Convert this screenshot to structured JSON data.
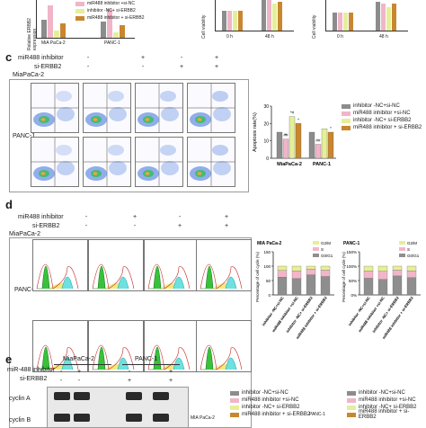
{
  "panels": {
    "c": "c",
    "d": "d",
    "e": "e"
  },
  "top": {
    "legend_a": [
      "miR488 inhibitor +si-NC",
      "inhibitor -NC+ si-ERBB2",
      "miR488 inhibitor + si-ERBB2"
    ],
    "ylabel_a": "Relative ERBB2 expression",
    "cats_a": [
      "MiA PaCa-2",
      "PANC-1"
    ],
    "cell_viab": "Cell viability",
    "t1": "0 h",
    "t2": "48 h",
    "t3": "0 h",
    "t4": "48 h"
  },
  "sectionC": {
    "mir488": "miR488 inhibitor",
    "si": "si-ERBB2",
    "line1": "MiaPaCa-2",
    "line2": "PANC-1",
    "signs_mir": [
      "-",
      "+",
      "-",
      "+"
    ],
    "signs_si": [
      "-",
      "-",
      "+",
      "+"
    ],
    "legend": [
      "inhibitor -NC+si-NC",
      "miR488 inhibitor +si-NC",
      "inhibitor -NC+ si-ERBB2",
      "miR488 inhibitor + si-ERBB2"
    ],
    "colors": [
      "#8c8c8c",
      "#f0b5c8",
      "#e5ef9a",
      "#c9862f"
    ],
    "ylabel": "Apoptosis rate(%)",
    "cats": [
      "MiaPaCa-2",
      "PANC-1"
    ],
    "yticks": [
      "0",
      "10",
      "20",
      "30"
    ],
    "annot": [
      "*",
      "##",
      "*#",
      "*",
      "##",
      "*"
    ]
  },
  "sectionD": {
    "mir488": "miR488 inhibitor",
    "si": "si-ERBB2",
    "line1": "MiaPaCa-2",
    "line2": "PANC-1",
    "signs_mir": [
      "-",
      "+",
      "-",
      "+"
    ],
    "signs_si": [
      "-",
      "-",
      "+",
      "+"
    ],
    "chart1_title": "MIA PaCa-2",
    "chart2_title": "PANC-1",
    "ylabel": "Percentage of cell cycle (%)",
    "yticks": [
      "0",
      "50",
      "100",
      "150"
    ],
    "yticks_pct": [
      "0%",
      "50%",
      "100%",
      "150%"
    ],
    "legend": [
      "G2/M",
      "S",
      "G0/G1"
    ],
    "colors": [
      "#e6ef96",
      "#f2b6c9",
      "#8e8e8e"
    ],
    "xcats": [
      "inhibitor -NC+si-NC",
      "miR488 inhibitor +si-NC",
      "inhibitor -NC+ si-ERBB2",
      "miR488 inhibitor + si-ERBB2"
    ]
  },
  "sectionE": {
    "line1": "MiaPaCa-2",
    "line2": "PANC-1",
    "mir488": "miR-488 inhibitor",
    "si": "si-ERBB2",
    "signs_mir": [
      "-",
      "+",
      "-",
      "+"
    ],
    "signs_si": [
      "-",
      "-",
      "+",
      "+"
    ],
    "row1": "cyclin A",
    "row2": "cyclin B",
    "legend": [
      "inhibitor -NC+si-NC",
      "miR488 inhibitor +si-NC",
      "inhibitor -NC+ si-ERBB2",
      "miR488 inhibitor + si-ERBB2"
    ],
    "chart1_title": "MIA PaCa-2",
    "chart2_title": "PANC-1"
  },
  "chart_data": [
    {
      "type": "bar",
      "title": "",
      "ylabel": "Apoptosis rate(%)",
      "categories": [
        "MiaPaCa-2",
        "PANC-1"
      ],
      "ylim": [
        0,
        30
      ],
      "series": [
        {
          "name": "inhibitor -NC+si-NC",
          "values": [
            15,
            15
          ]
        },
        {
          "name": "miR488 inhibitor +si-NC",
          "values": [
            11,
            8
          ]
        },
        {
          "name": "inhibitor -NC+ si-ERBB2",
          "values": [
            24,
            17
          ]
        },
        {
          "name": "miR488 inhibitor + si-ERBB2",
          "values": [
            20,
            15
          ]
        }
      ]
    },
    {
      "type": "bar",
      "title": "MIA PaCa-2",
      "ylabel": "Percentage of cell cycle (%)",
      "categories": [
        "inhibitor -NC+si-NC",
        "miR488 inhibitor +si-NC",
        "inhibitor -NC+ si-ERBB2",
        "miR488 inhibitor + si-ERBB2"
      ],
      "ylim": [
        0,
        150
      ],
      "stacked": true,
      "series": [
        {
          "name": "G0/G1",
          "values": [
            62,
            57,
            70,
            64
          ]
        },
        {
          "name": "S",
          "values": [
            23,
            26,
            19,
            22
          ]
        },
        {
          "name": "G2/M",
          "values": [
            15,
            17,
            11,
            14
          ]
        }
      ]
    },
    {
      "type": "bar",
      "title": "PANC-1",
      "ylabel": "Percentage of cell cycle (%)",
      "categories": [
        "inhibitor -NC+si-NC",
        "miR488 inhibitor +si-NC",
        "inhibitor -NC+ si-ERBB2",
        "miR488 inhibitor + si-ERBB2"
      ],
      "ylim": [
        0,
        150
      ],
      "stacked": true,
      "series": [
        {
          "name": "G0/G1",
          "values": [
            58,
            54,
            66,
            60
          ]
        },
        {
          "name": "S",
          "values": [
            25,
            28,
            20,
            24
          ]
        },
        {
          "name": "G2/M",
          "values": [
            17,
            18,
            14,
            16
          ]
        }
      ]
    }
  ]
}
